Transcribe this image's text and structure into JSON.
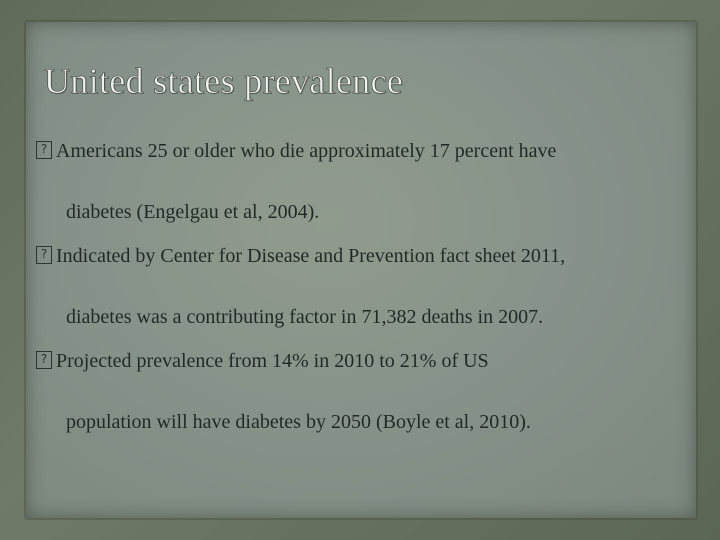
{
  "slide": {
    "title": "United states prevalence",
    "bullets": [
      {
        "line1": "Americans 25 or older who die approximately 17 percent have",
        "line2": "diabetes (Engelgau et al, 2004)."
      },
      {
        "line1": "Indicated by Center for Disease and Prevention fact sheet 2011,",
        "line2": "diabetes was a contributing factor in 71,382 deaths in 2007."
      },
      {
        "line1": "Projected prevalence from 14% in 2010 to 21% of US",
        "line2": "population will have diabetes by 2050 (Boyle et al, 2010)."
      }
    ]
  },
  "colors": {
    "background": "#6b7865",
    "panel": "#86938a",
    "title": "#f1f3ee",
    "text": "#1f2a24"
  },
  "icons": {
    "bullet": "missing-glyph-box-icon"
  }
}
